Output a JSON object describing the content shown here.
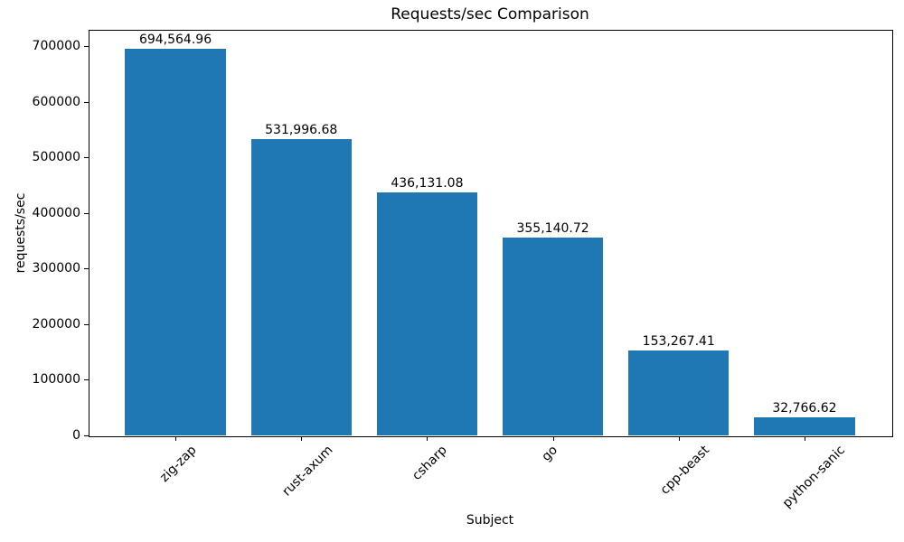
{
  "chart_data": {
    "type": "bar",
    "title": "Requests/sec Comparison",
    "xlabel": "Subject",
    "ylabel": "requests/sec",
    "categories": [
      "zig-zap",
      "rust-axum",
      "csharp",
      "go",
      "cpp-beast",
      "python-sanic"
    ],
    "values": [
      694564.96,
      531996.68,
      436131.08,
      355140.72,
      153267.41,
      32766.62
    ],
    "data_labels": [
      "694,564.96",
      "531,996.68",
      "436,131.08",
      "355,140.72",
      "153,267.41",
      "32,766.62"
    ],
    "yticks": [
      0,
      100000,
      200000,
      300000,
      400000,
      500000,
      600000,
      700000
    ],
    "ylim": [
      0,
      729293
    ],
    "bar_width_fraction": 0.8,
    "bar_color": "#1f77b4",
    "spine_color": "#000000",
    "text_color": "#000000",
    "background": "#ffffff",
    "grid": false,
    "legend": null,
    "x_tick_rotation": 45
  }
}
